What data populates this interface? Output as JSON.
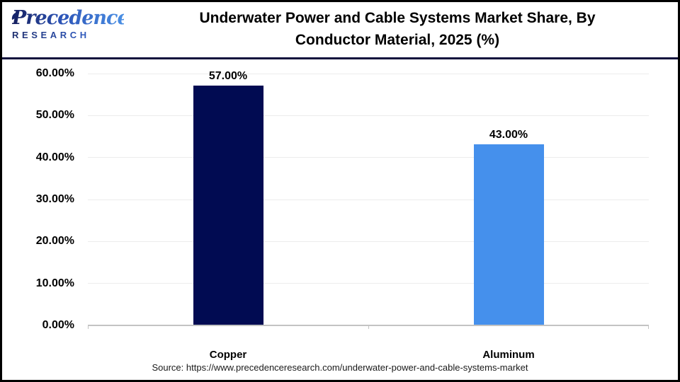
{
  "logo": {
    "brand": "Precedence",
    "sub": "RESEARCH"
  },
  "header": {
    "title_line1": "Underwater Power and Cable Systems Market Share, By",
    "title_line2": "Conductor Material, 2025 (%)"
  },
  "chart_data": {
    "type": "bar",
    "title": "Underwater Power and Cable Systems Market Share, By Conductor Material, 2025 (%)",
    "categories": [
      "Copper",
      "Aluminum"
    ],
    "values": [
      57,
      43
    ],
    "value_labels": [
      "57.00%",
      "43.00%"
    ],
    "bar_colors": [
      "#010b52",
      "#4590ec"
    ],
    "ylim": [
      0,
      60
    ],
    "y_ticks": [
      {
        "value": 60,
        "label": "60.00%"
      },
      {
        "value": 50,
        "label": "50.00%"
      },
      {
        "value": 40,
        "label": "40.00%"
      },
      {
        "value": 30,
        "label": "30.00%"
      },
      {
        "value": 20,
        "label": "20.00%"
      },
      {
        "value": 10,
        "label": "10.00%"
      },
      {
        "value": 0,
        "label": "0.00%"
      }
    ],
    "grid": true,
    "legend": false,
    "xlabel": "",
    "ylabel": ""
  },
  "footer": {
    "source": "Source: https://www.precedenceresearch.com/underwater-power-and-cable-systems-market"
  },
  "colors": {
    "grid": "#ececec",
    "axis": "#c3c3c3",
    "divider": "#10103d",
    "border": "#000000"
  }
}
